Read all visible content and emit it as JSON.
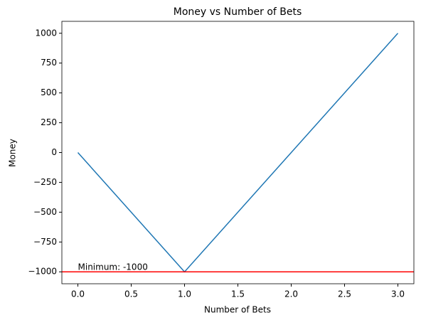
{
  "chart_data": {
    "type": "line",
    "title": "Money vs Number of Bets",
    "x_label": "Number of Bets",
    "y_label": "Money",
    "x": [
      0,
      1,
      2,
      3
    ],
    "series": [
      {
        "name": "Money",
        "color": "#1f77b4",
        "values": [
          0,
          -1000,
          0,
          1000
        ]
      }
    ],
    "hline": {
      "value": -1000,
      "color": "#ff0000"
    },
    "annotation": "Minimum: -1000",
    "xlim": [
      -0.15,
      3.15
    ],
    "xticks": [
      {
        "value": 0,
        "label": "0.0"
      },
      {
        "value": 0.5,
        "label": "0.5"
      },
      {
        "value": 1,
        "label": "1.0"
      },
      {
        "value": 1.5,
        "label": "1.5"
      },
      {
        "value": 2,
        "label": "2.0"
      },
      {
        "value": 2.5,
        "label": "2.5"
      },
      {
        "value": 3,
        "label": "3.0"
      }
    ],
    "ylim": [
      -1100,
      1100
    ],
    "yticks": [
      {
        "value": -1000,
        "label": "−1000"
      },
      {
        "value": -750,
        "label": "−750"
      },
      {
        "value": -500,
        "label": "−500"
      },
      {
        "value": -250,
        "label": "−250"
      },
      0,
      250,
      500,
      750,
      1000
    ],
    "grid": false
  }
}
